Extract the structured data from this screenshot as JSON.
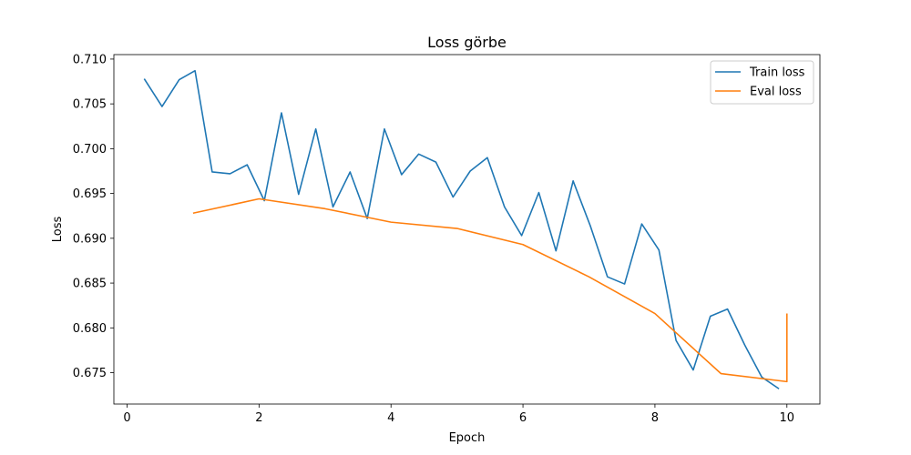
{
  "chart_data": {
    "type": "line",
    "title": "Loss görbe",
    "xlabel": "Epoch",
    "ylabel": "Loss",
    "xlim": [
      -0.2,
      10.5
    ],
    "ylim": [
      0.6715,
      0.7105
    ],
    "xticks": [
      0,
      2,
      4,
      6,
      8,
      10
    ],
    "xtick_labels": [
      "0",
      "2",
      "4",
      "6",
      "8",
      "10"
    ],
    "yticks": [
      0.675,
      0.68,
      0.685,
      0.69,
      0.695,
      0.7,
      0.705,
      0.71
    ],
    "ytick_labels": [
      "0.675",
      "0.680",
      "0.685",
      "0.690",
      "0.695",
      "0.700",
      "0.705",
      "0.710"
    ],
    "grid": false,
    "legend_position": "top-right",
    "series": [
      {
        "name": "Train loss",
        "color": "#1f77b4",
        "x": [
          0.26,
          0.53,
          0.79,
          1.03,
          1.29,
          1.56,
          1.82,
          2.08,
          2.34,
          2.6,
          2.86,
          3.12,
          3.38,
          3.64,
          3.9,
          4.16,
          4.42,
          4.68,
          4.94,
          5.2,
          5.46,
          5.72,
          5.98,
          6.24,
          6.5,
          6.76,
          7.02,
          7.28,
          7.54,
          7.8,
          8.06,
          8.32,
          8.58,
          8.84,
          9.1,
          9.36,
          9.62,
          9.88
        ],
        "y": [
          0.7078,
          0.7047,
          0.7077,
          0.7087,
          0.6974,
          0.6972,
          0.6982,
          0.6942,
          0.704,
          0.6949,
          0.7022,
          0.6935,
          0.6974,
          0.6922,
          0.7022,
          0.6971,
          0.6994,
          0.6985,
          0.6946,
          0.6975,
          0.699,
          0.6935,
          0.6903,
          0.6951,
          0.6886,
          0.6964,
          0.6914,
          0.6857,
          0.6849,
          0.6916,
          0.6887,
          0.6786,
          0.6753,
          0.6813,
          0.6821,
          0.6781,
          0.6745,
          0.6732
        ]
      },
      {
        "name": "Eval loss",
        "color": "#ff7f0e",
        "x": [
          1.0,
          2.0,
          3.0,
          4.0,
          5.0,
          6.0,
          7.0,
          8.0,
          9.0,
          10.0,
          10.0
        ],
        "y": [
          0.6928,
          0.6944,
          0.6933,
          0.6918,
          0.6911,
          0.6893,
          0.6857,
          0.6816,
          0.6749,
          0.674,
          0.6816
        ]
      }
    ]
  }
}
